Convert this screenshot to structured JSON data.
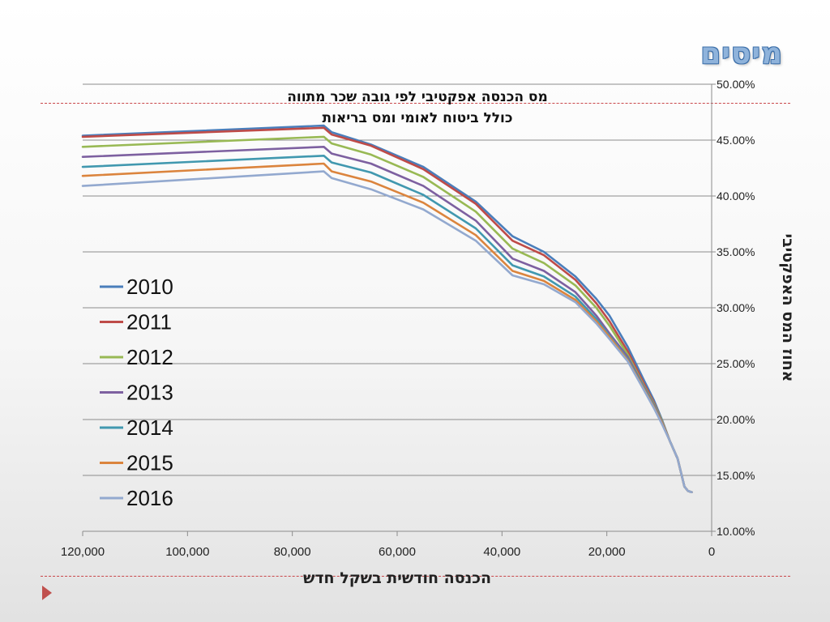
{
  "slide": {
    "title": "מיסים",
    "title_color": "#8fb3db",
    "accent_line_color": "#c9474b"
  },
  "chart_data": {
    "type": "line",
    "title_lines": [
      "מס הכנסה אפקטיבי לפי גובה שכר מתווה",
      "כולל ביטוח לאומי ומס בריאות"
    ],
    "xlabel": "הכנסה חודשית בשקל חדש",
    "ylabel": "אחוז המס האפקטיבי",
    "x_reversed": true,
    "xlim": [
      0,
      120000
    ],
    "x_ticks": [
      120000,
      100000,
      80000,
      60000,
      40000,
      20000,
      0
    ],
    "x_tick_labels": [
      "120,000",
      "100,000",
      "80,000",
      "60,000",
      "40,000",
      "20,000",
      "0"
    ],
    "ylim": [
      10,
      50
    ],
    "y_ticks": [
      10,
      15,
      20,
      25,
      30,
      35,
      40,
      45,
      50
    ],
    "y_tick_labels": [
      "10.00%",
      "15.00%",
      "20.00%",
      "25.00%",
      "30.00%",
      "35.00%",
      "40.00%",
      "45.00%",
      "50.00%"
    ],
    "grid": "horizontal",
    "legend_position": "left",
    "series": [
      {
        "name": "2010",
        "color": "#4a7ebb",
        "x": [
          120000,
          74000,
          72500,
          65000,
          55000,
          45000,
          38000,
          32000,
          26000,
          22000,
          19500,
          16000,
          13000,
          11000,
          9500,
          8000,
          6500,
          5200,
          4500,
          3800
        ],
        "y": [
          45.4,
          46.3,
          45.7,
          44.6,
          42.6,
          39.5,
          36.4,
          35.0,
          32.8,
          30.8,
          29.3,
          26.5,
          23.6,
          21.7,
          20.0,
          18.1,
          16.5,
          14.0,
          13.6,
          13.5
        ]
      },
      {
        "name": "2011",
        "color": "#be4b48",
        "x": [
          120000,
          74000,
          72500,
          65000,
          55000,
          45000,
          38000,
          32000,
          26000,
          22000,
          19500,
          16000,
          13000,
          11000,
          9500,
          8000,
          6500,
          5200,
          4500,
          3800
        ],
        "y": [
          45.3,
          46.1,
          45.5,
          44.5,
          42.4,
          39.3,
          36.0,
          34.7,
          32.5,
          30.4,
          28.8,
          26.1,
          23.3,
          21.5,
          19.9,
          18.1,
          16.5,
          14.0,
          13.6,
          13.5
        ]
      },
      {
        "name": "2012",
        "color": "#98b954",
        "x": [
          120000,
          74000,
          72500,
          65000,
          55000,
          45000,
          38000,
          32000,
          26000,
          22000,
          19500,
          16000,
          13000,
          11000,
          9500,
          8000,
          6500,
          5200,
          4500,
          3800
        ],
        "y": [
          44.4,
          45.3,
          44.7,
          43.7,
          41.7,
          38.6,
          35.3,
          34.0,
          32.0,
          30.0,
          28.4,
          25.8,
          23.1,
          21.4,
          19.9,
          18.1,
          16.5,
          14.0,
          13.6,
          13.5
        ]
      },
      {
        "name": "2013",
        "color": "#7d60a0",
        "x": [
          120000,
          74000,
          72500,
          65000,
          55000,
          45000,
          38000,
          32000,
          26000,
          22000,
          19500,
          16000,
          13000,
          11000,
          9500,
          8000,
          6500,
          5200,
          4500,
          3800
        ],
        "y": [
          43.5,
          44.4,
          43.8,
          42.9,
          40.9,
          37.8,
          34.4,
          33.3,
          31.4,
          29.3,
          27.7,
          25.6,
          23.0,
          21.3,
          19.8,
          18.1,
          16.5,
          14.0,
          13.6,
          13.5
        ]
      },
      {
        "name": "2014",
        "color": "#4198af",
        "x": [
          120000,
          74000,
          72500,
          65000,
          55000,
          45000,
          38000,
          32000,
          26000,
          22000,
          19500,
          16000,
          13000,
          11000,
          9500,
          8000,
          6500,
          5200,
          4500,
          3800
        ],
        "y": [
          42.6,
          43.6,
          43.0,
          42.1,
          40.1,
          37.1,
          33.8,
          32.8,
          31.0,
          29.0,
          27.5,
          25.4,
          22.9,
          21.2,
          19.7,
          18.1,
          16.5,
          14.0,
          13.6,
          13.5
        ]
      },
      {
        "name": "2015",
        "color": "#db843d",
        "x": [
          120000,
          74000,
          72500,
          65000,
          55000,
          45000,
          38000,
          32000,
          26000,
          22000,
          19500,
          16000,
          13000,
          11000,
          9500,
          8000,
          6500,
          5200,
          4500,
          3800
        ],
        "y": [
          41.8,
          42.9,
          42.2,
          41.3,
          39.4,
          36.5,
          33.3,
          32.4,
          30.7,
          28.8,
          27.4,
          25.3,
          22.8,
          21.1,
          19.7,
          18.1,
          16.5,
          14.0,
          13.6,
          13.5
        ]
      },
      {
        "name": "2016",
        "color": "#93a9cf",
        "x": [
          120000,
          74000,
          72500,
          65000,
          55000,
          45000,
          38000,
          32000,
          26000,
          22000,
          19500,
          16000,
          13000,
          11000,
          9500,
          8000,
          6500,
          5200,
          4500,
          3800
        ],
        "y": [
          40.9,
          42.2,
          41.6,
          40.6,
          38.8,
          36.0,
          32.9,
          32.1,
          30.5,
          28.6,
          27.2,
          25.2,
          22.7,
          21.0,
          19.6,
          18.1,
          16.5,
          14.0,
          13.6,
          13.5
        ]
      }
    ]
  }
}
